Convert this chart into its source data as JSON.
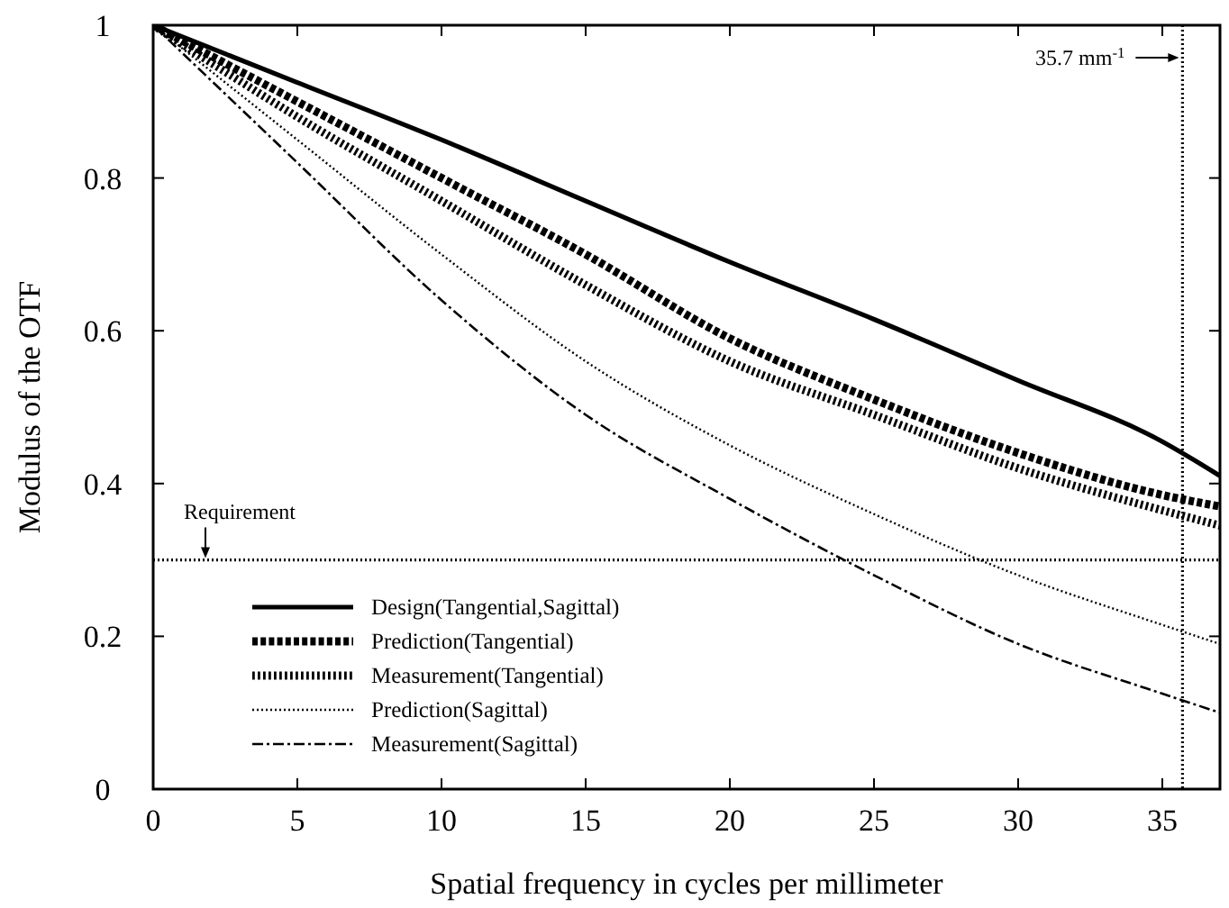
{
  "chart_data": {
    "type": "line",
    "xlabel": "Spatial frequency in cycles per millimeter",
    "ylabel": "Modulus of the OTF",
    "x": [
      0,
      5,
      10,
      15,
      20,
      25,
      30,
      35,
      37
    ],
    "series": [
      {
        "name": "Design(Tangential,Sagittal)",
        "color": "#000000",
        "line_style": "solid",
        "values": [
          1,
          0.925,
          0.85,
          0.77,
          0.69,
          0.615,
          0.535,
          0.455,
          0.41
        ]
      },
      {
        "name": "Prediction(Tangential)",
        "color": "#000000",
        "line_style": "dashed",
        "values": [
          1,
          0.9,
          0.8,
          0.7,
          0.59,
          0.51,
          0.44,
          0.385,
          0.37
        ]
      },
      {
        "name": "Measurement(Tangential)",
        "color": "#000000",
        "line_style": "dotted",
        "values": [
          1,
          0.88,
          0.77,
          0.66,
          0.56,
          0.49,
          0.42,
          0.365,
          0.345
        ]
      },
      {
        "name": "Prediction(Sagittal)",
        "color": "#000000",
        "line_style": "dotted",
        "values": [
          1,
          0.85,
          0.7,
          0.56,
          0.45,
          0.36,
          0.28,
          0.215,
          0.19
        ]
      },
      {
        "name": "Measurement(Sagittal)",
        "color": "#000000",
        "line_style": "dashed",
        "values": [
          1,
          0.82,
          0.64,
          0.49,
          0.38,
          0.28,
          0.19,
          0.125,
          0.1
        ]
      }
    ],
    "xlim": [
      0,
      37
    ],
    "xticks": [
      0,
      5,
      10,
      15,
      20,
      25,
      30,
      35
    ],
    "ylim": [
      0,
      1
    ],
    "yticks": [
      0,
      0.2,
      0.4,
      0.6,
      0.8,
      1
    ],
    "ref_lines": [
      {
        "axis": "y",
        "value": 0.3,
        "label": "Requirement",
        "line_style": "dotted",
        "color": "#000000"
      },
      {
        "axis": "x",
        "value": 35.7,
        "label": "35.7 mm$^{-1}$",
        "line_style": "dotted",
        "color": "#000000"
      }
    ],
    "grid": false,
    "legend": "bottom left"
  }
}
